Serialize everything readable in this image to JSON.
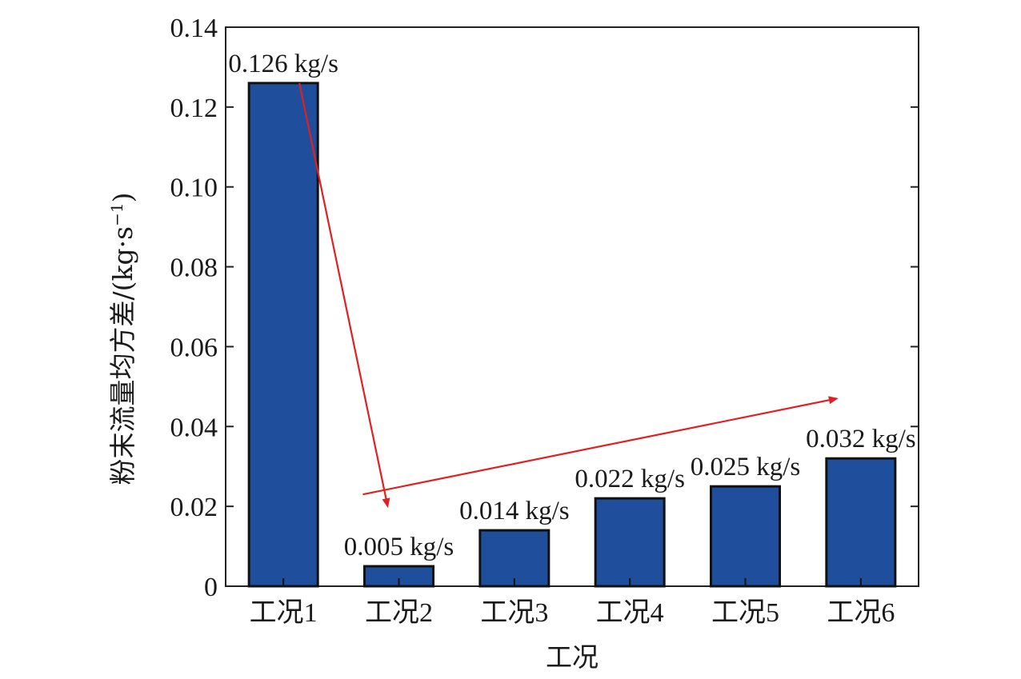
{
  "chart_data": {
    "type": "bar",
    "categories": [
      "工况1",
      "工况2",
      "工况3",
      "工况4",
      "工况5",
      "工况6"
    ],
    "values": [
      0.126,
      0.005,
      0.014,
      0.022,
      0.025,
      0.032
    ],
    "data_labels": [
      "0.126 kg/s",
      "0.005 kg/s",
      "0.014 kg/s",
      "0.022 kg/s",
      "0.025 kg/s",
      "0.032 kg/s"
    ],
    "xlabel": "工况",
    "ylabel": "粉末流量均方差/(kg·s",
    "ylabel_sup": "−1",
    "ylabel_close": ")",
    "ylim": [
      0,
      0.14
    ],
    "yticks": [
      "0",
      "0.02",
      "0.04",
      "0.06",
      "0.08",
      "0.10",
      "0.12",
      "0.14"
    ],
    "grid": false,
    "bar_color": "#1f4e9c",
    "bar_edge_color": "#111111",
    "arrow_color": "#e02020",
    "annotations": [
      {
        "type": "arrow",
        "from": {
          "category": "工况1",
          "y": 0.126
        },
        "to": {
          "category": "工况2",
          "y": 0.02
        }
      },
      {
        "type": "arrow",
        "from": {
          "category": "工况2",
          "y": 0.023
        },
        "to": {
          "category": "工况6",
          "y": 0.047
        }
      }
    ]
  }
}
